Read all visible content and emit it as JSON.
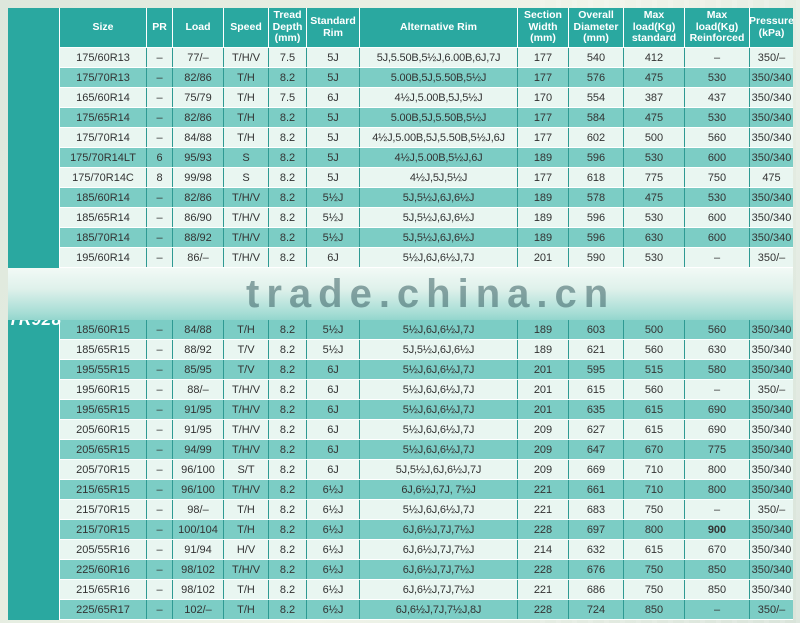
{
  "model": "TR928",
  "watermark": "trade.china.cn",
  "columns": [
    {
      "key": "size",
      "label": "Size"
    },
    {
      "key": "pr",
      "label": "PR"
    },
    {
      "key": "load",
      "label": "Load"
    },
    {
      "key": "speed",
      "label": "Speed"
    },
    {
      "key": "tread",
      "label": "Tread Depth (mm)"
    },
    {
      "key": "std_rim",
      "label": "Standard Rim"
    },
    {
      "key": "alt_rim",
      "label": "Alternative Rim"
    },
    {
      "key": "width",
      "label": "Section Width (mm)"
    },
    {
      "key": "diameter",
      "label": "Overall Diameter (mm)"
    },
    {
      "key": "max_std",
      "label": "Max load(Kg) standard"
    },
    {
      "key": "max_reinf",
      "label": "Max load(Kg) Reinforced"
    },
    {
      "key": "pressure",
      "label": "Pressure (kPa)"
    }
  ],
  "rows_top": [
    {
      "size": "175/60R13",
      "pr": "–",
      "load": "77/–",
      "speed": "T/H/V",
      "tread": "7.5",
      "std_rim": "5J",
      "alt_rim": "5J,5.50B,5½J,6.00B,6J,7J",
      "width": "177",
      "diameter": "540",
      "max_std": "412",
      "max_reinf": "–",
      "pressure": "350/–"
    },
    {
      "size": "175/70R13",
      "pr": "–",
      "load": "82/86",
      "speed": "T/H",
      "tread": "8.2",
      "std_rim": "5J",
      "alt_rim": "5.00B,5J,5.50B,5½J",
      "width": "177",
      "diameter": "576",
      "max_std": "475",
      "max_reinf": "530",
      "pressure": "350/340"
    },
    {
      "size": "165/60R14",
      "pr": "–",
      "load": "75/79",
      "speed": "T/H",
      "tread": "7.5",
      "std_rim": "6J",
      "alt_rim": "4½J,5.00B,5J,5½J",
      "width": "170",
      "diameter": "554",
      "max_std": "387",
      "max_reinf": "437",
      "pressure": "350/340"
    },
    {
      "size": "175/65R14",
      "pr": "–",
      "load": "82/86",
      "speed": "T/H",
      "tread": "8.2",
      "std_rim": "5J",
      "alt_rim": "5.00B,5J,5.50B,5½J",
      "width": "177",
      "diameter": "584",
      "max_std": "475",
      "max_reinf": "530",
      "pressure": "350/340"
    },
    {
      "size": "175/70R14",
      "pr": "–",
      "load": "84/88",
      "speed": "T/H",
      "tread": "8.2",
      "std_rim": "5J",
      "alt_rim": "4½J,5.00B,5J,5.50B,5½J,6J",
      "width": "177",
      "diameter": "602",
      "max_std": "500",
      "max_reinf": "560",
      "pressure": "350/340"
    },
    {
      "size": "175/70R14LT",
      "pr": "6",
      "load": "95/93",
      "speed": "S",
      "tread": "8.2",
      "std_rim": "5J",
      "alt_rim": "4½J,5.00B,5½J,6J",
      "width": "189",
      "diameter": "596",
      "max_std": "530",
      "max_reinf": "600",
      "pressure": "350/340"
    },
    {
      "size": "175/70R14C",
      "pr": "8",
      "load": "99/98",
      "speed": "S",
      "tread": "8.2",
      "std_rim": "5J",
      "alt_rim": "4½J,5J,5½J",
      "width": "177",
      "diameter": "618",
      "max_std": "775",
      "max_reinf": "750",
      "pressure": "475"
    },
    {
      "size": "185/60R14",
      "pr": "–",
      "load": "82/86",
      "speed": "T/H/V",
      "tread": "8.2",
      "std_rim": "5½J",
      "alt_rim": "5J,5½J,6J,6½J",
      "width": "189",
      "diameter": "578",
      "max_std": "475",
      "max_reinf": "530",
      "pressure": "350/340"
    },
    {
      "size": "185/65R14",
      "pr": "–",
      "load": "86/90",
      "speed": "T/H/V",
      "tread": "8.2",
      "std_rim": "5½J",
      "alt_rim": "5J,5½J,6J,6½J",
      "width": "189",
      "diameter": "596",
      "max_std": "530",
      "max_reinf": "600",
      "pressure": "350/340"
    },
    {
      "size": "185/70R14",
      "pr": "–",
      "load": "88/92",
      "speed": "T/H/V",
      "tread": "8.2",
      "std_rim": "5½J",
      "alt_rim": "5J,5½J,6J,6½J",
      "width": "189",
      "diameter": "596",
      "max_std": "630",
      "max_reinf": "600",
      "pressure": "350/340"
    },
    {
      "size": "195/60R14",
      "pr": "–",
      "load": "86/–",
      "speed": "T/H/V",
      "tread": "8.2",
      "std_rim": "6J",
      "alt_rim": "5½J,6J,6½J,7J",
      "width": "201",
      "diameter": "590",
      "max_std": "530",
      "max_reinf": "–",
      "pressure": "350/–"
    }
  ],
  "rows_bottom": [
    {
      "size": "185/60R15",
      "pr": "–",
      "load": "84/88",
      "speed": "T/H",
      "tread": "8.2",
      "std_rim": "5½J",
      "alt_rim": "5½J,6J,6½J,7J",
      "width": "189",
      "diameter": "603",
      "max_std": "500",
      "max_reinf": "560",
      "pressure": "350/340"
    },
    {
      "size": "185/65R15",
      "pr": "–",
      "load": "88/92",
      "speed": "T/V",
      "tread": "8.2",
      "std_rim": "5½J",
      "alt_rim": "5J,5½J,6J,6½J",
      "width": "189",
      "diameter": "621",
      "max_std": "560",
      "max_reinf": "630",
      "pressure": "350/340"
    },
    {
      "size": "195/55R15",
      "pr": "–",
      "load": "85/95",
      "speed": "T/V",
      "tread": "8.2",
      "std_rim": "6J",
      "alt_rim": "5½J,6J,6½J,7J",
      "width": "201",
      "diameter": "595",
      "max_std": "515",
      "max_reinf": "580",
      "pressure": "350/340"
    },
    {
      "size": "195/60R15",
      "pr": "–",
      "load": "88/–",
      "speed": "T/H/V",
      "tread": "8.2",
      "std_rim": "6J",
      "alt_rim": "5½J,6J,6½J,7J",
      "width": "201",
      "diameter": "615",
      "max_std": "560",
      "max_reinf": "–",
      "pressure": "350/–"
    },
    {
      "size": "195/65R15",
      "pr": "–",
      "load": "91/95",
      "speed": "T/H/V",
      "tread": "8.2",
      "std_rim": "6J",
      "alt_rim": "5½J,6J,6½J,7J",
      "width": "201",
      "diameter": "635",
      "max_std": "615",
      "max_reinf": "690",
      "pressure": "350/340"
    },
    {
      "size": "205/60R15",
      "pr": "–",
      "load": "91/95",
      "speed": "T/H/V",
      "tread": "8.2",
      "std_rim": "6J",
      "alt_rim": "5½J,6J,6½J,7J",
      "width": "209",
      "diameter": "627",
      "max_std": "615",
      "max_reinf": "690",
      "pressure": "350/340"
    },
    {
      "size": "205/65R15",
      "pr": "–",
      "load": "94/99",
      "speed": "T/H/V",
      "tread": "8.2",
      "std_rim": "6J",
      "alt_rim": "5½J,6J,6½J,7J",
      "width": "209",
      "diameter": "647",
      "max_std": "670",
      "max_reinf": "775",
      "pressure": "350/340"
    },
    {
      "size": "205/70R15",
      "pr": "–",
      "load": "96/100",
      "speed": "S/T",
      "tread": "8.2",
      "std_rim": "6J",
      "alt_rim": "5J,5½J,6J,6½J,7J",
      "width": "209",
      "diameter": "669",
      "max_std": "710",
      "max_reinf": "800",
      "pressure": "350/340"
    },
    {
      "size": "215/65R15",
      "pr": "–",
      "load": "96/100",
      "speed": "T/H/V",
      "tread": "8.2",
      "std_rim": "6½J",
      "alt_rim": "6J,6½J,7J, 7½J",
      "width": "221",
      "diameter": "661",
      "max_std": "710",
      "max_reinf": "800",
      "pressure": "350/340"
    },
    {
      "size": "215/70R15",
      "pr": "–",
      "load": "98/–",
      "speed": "T/H",
      "tread": "8.2",
      "std_rim": "6½J",
      "alt_rim": "5½J,6J,6½J,7J",
      "width": "221",
      "diameter": "683",
      "max_std": "750",
      "max_reinf": "–",
      "pressure": "350/–"
    },
    {
      "size": "215/70R15",
      "pr": "–",
      "load": "100/104",
      "speed": "T/H",
      "tread": "8.2",
      "std_rim": "6½J",
      "alt_rim": "6J,6½J,7J,7½J",
      "width": "228",
      "diameter": "697",
      "max_std": "800",
      "max_reinf": "900",
      "max_reinf_bold": true,
      "pressure": "350/340"
    },
    {
      "size": "205/55R16",
      "pr": "–",
      "load": "91/94",
      "speed": "H/V",
      "tread": "8.2",
      "std_rim": "6½J",
      "alt_rim": "6J,6½J,7J,7½J",
      "width": "214",
      "diameter": "632",
      "max_std": "615",
      "max_reinf": "670",
      "pressure": "350/340"
    },
    {
      "size": "225/60R16",
      "pr": "–",
      "load": "98/102",
      "speed": "T/H/V",
      "tread": "8.2",
      "std_rim": "6½J",
      "alt_rim": "6J,6½J,7J,7½J",
      "width": "228",
      "diameter": "676",
      "max_std": "750",
      "max_reinf": "850",
      "pressure": "350/340"
    },
    {
      "size": "215/65R16",
      "pr": "–",
      "load": "98/102",
      "speed": "T/H",
      "tread": "8.2",
      "std_rim": "6½J",
      "alt_rim": "6J,6½J,7J,7½J",
      "width": "221",
      "diameter": "686",
      "max_std": "750",
      "max_reinf": "850",
      "pressure": "350/340"
    },
    {
      "size": "225/65R17",
      "pr": "–",
      "load": "102/–",
      "speed": "T/H",
      "tread": "8.2",
      "std_rim": "6½J",
      "alt_rim": "6J,6½J,7J,7½J,8J",
      "width": "228",
      "diameter": "724",
      "max_std": "850",
      "max_reinf": "–",
      "pressure": "350/–"
    }
  ],
  "colors": {
    "teal_dark": "#2aa8a0",
    "row_light": "#e9f6f1",
    "row_teal": "#7ccdc5",
    "grid_line": "#2f9a93"
  }
}
